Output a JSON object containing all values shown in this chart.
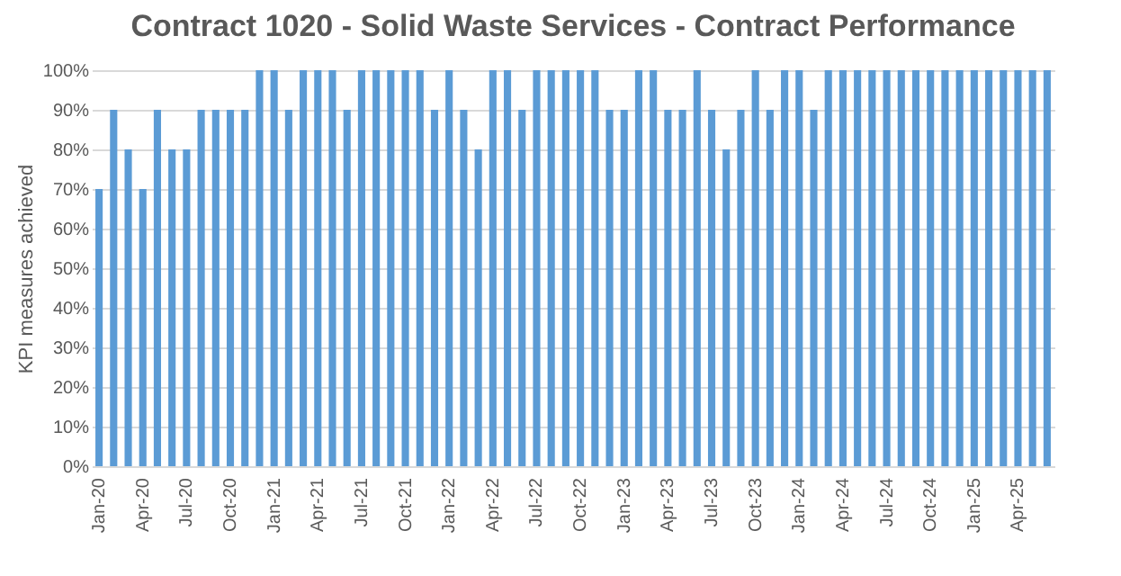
{
  "chart_data": {
    "type": "bar",
    "title": "Contract 1020 - Solid Waste Services - Contract Performance",
    "ylabel": "KPI measures achieved",
    "categories": [
      "Jan-20",
      null,
      null,
      "Apr-20",
      null,
      null,
      "Jul-20",
      null,
      null,
      "Oct-20",
      null,
      null,
      "Jan-21",
      null,
      null,
      "Apr-21",
      null,
      null,
      "Jul-21",
      null,
      null,
      "Oct-21",
      null,
      null,
      "Jan-22",
      null,
      null,
      "Apr-22",
      null,
      null,
      "Jul-22",
      null,
      null,
      "Oct-22",
      null,
      null,
      "Jan-23",
      null,
      null,
      "Apr-23",
      null,
      null,
      "Jul-23",
      null,
      null,
      "Oct-23",
      null,
      null,
      "Jan-24",
      null,
      null,
      "Apr-24",
      null,
      null,
      "Jul-24",
      null,
      null,
      "Oct-24",
      null,
      null,
      "Jan-25",
      null,
      null,
      "Apr-25",
      null,
      null
    ],
    "values": [
      70,
      90,
      80,
      70,
      90,
      80,
      80,
      90,
      90,
      90,
      90,
      100,
      100,
      90,
      100,
      100,
      100,
      90,
      100,
      100,
      100,
      100,
      100,
      90,
      100,
      90,
      80,
      100,
      100,
      90,
      100,
      100,
      100,
      100,
      100,
      90,
      90,
      100,
      100,
      90,
      90,
      100,
      90,
      80,
      90,
      100,
      90,
      100,
      100,
      90,
      100,
      100,
      100,
      100,
      100,
      100,
      100,
      100,
      100,
      100,
      100,
      100,
      100,
      100,
      100,
      100
    ],
    "color": "#5b9bd5",
    "ylim": [
      0,
      100
    ],
    "yticks": [
      {
        "value": 0,
        "label": "0%"
      },
      {
        "value": 10,
        "label": "10%"
      },
      {
        "value": 20,
        "label": "20%"
      },
      {
        "value": 30,
        "label": "30%"
      },
      {
        "value": 40,
        "label": "40%"
      },
      {
        "value": 50,
        "label": "50%"
      },
      {
        "value": 60,
        "label": "60%"
      },
      {
        "value": 70,
        "label": "70%"
      },
      {
        "value": 80,
        "label": "80%"
      },
      {
        "value": 90,
        "label": "90%"
      },
      {
        "value": 100,
        "label": "100%"
      }
    ],
    "grid": "y"
  }
}
